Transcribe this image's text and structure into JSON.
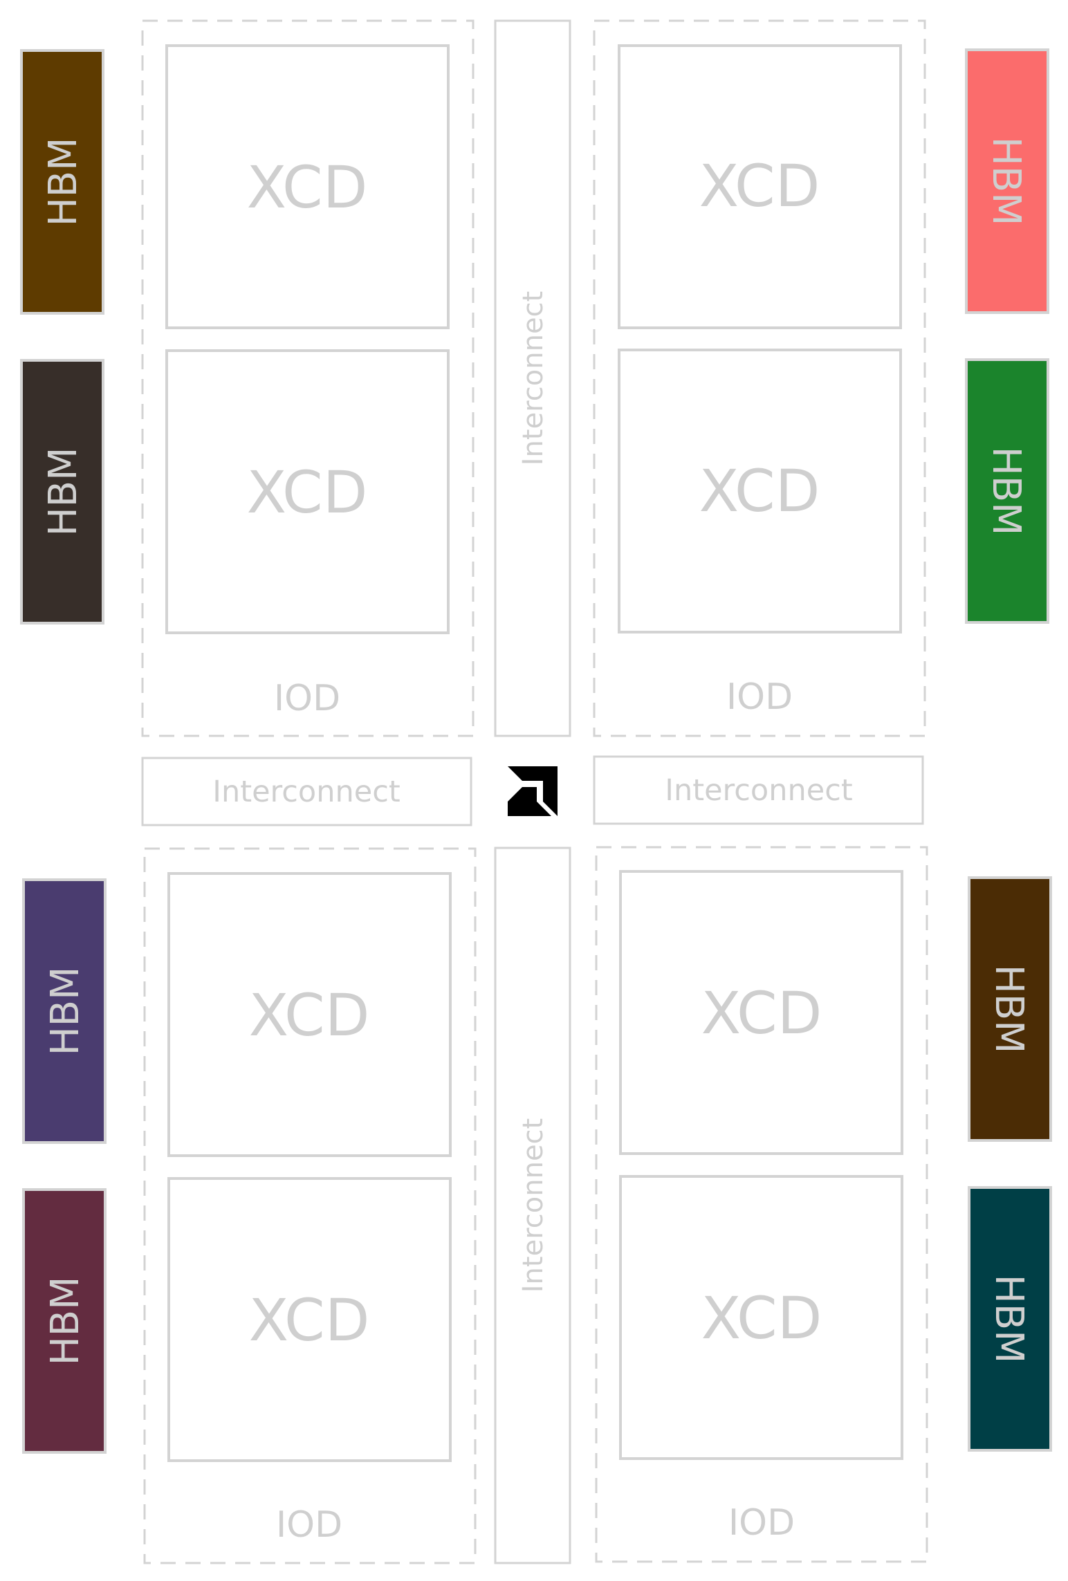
{
  "colors": {
    "outline": "#d3d3d3",
    "label": "#cfcfcf",
    "logo": "#000000",
    "background": "#ffffff"
  },
  "quadrants": [
    {
      "xcd_labels": [
        "XCD",
        "XCD"
      ],
      "iod_label": "IOD"
    },
    {
      "xcd_labels": [
        "XCD",
        "XCD"
      ],
      "iod_label": "IOD"
    },
    {
      "xcd_labels": [
        "XCD",
        "XCD"
      ],
      "iod_label": "IOD"
    },
    {
      "xcd_labels": [
        "XCD",
        "XCD"
      ],
      "iod_label": "IOD"
    }
  ],
  "interconnects": {
    "vertical_top": "Interconnect",
    "vertical_bottom": "Interconnect",
    "horizontal_left": "Interconnect",
    "horizontal_right": "Interconnect"
  },
  "hbm_stacks": [
    {
      "label": "HBM",
      "color": "#5e3b00",
      "side": "left"
    },
    {
      "label": "HBM",
      "color": "#372e29",
      "side": "left"
    },
    {
      "label": "HBM",
      "color": "#fb6c6c",
      "side": "right"
    },
    {
      "label": "HBM",
      "color": "#1b842c",
      "side": "right"
    },
    {
      "label": "HBM",
      "color": "#4a3c6f",
      "side": "left"
    },
    {
      "label": "HBM",
      "color": "#632c40",
      "side": "left"
    },
    {
      "label": "HBM",
      "color": "#4b2c05",
      "side": "right"
    },
    {
      "label": "HBM",
      "color": "#003f46",
      "side": "right"
    }
  ],
  "logo": {
    "icon": "amd-logo-icon"
  }
}
